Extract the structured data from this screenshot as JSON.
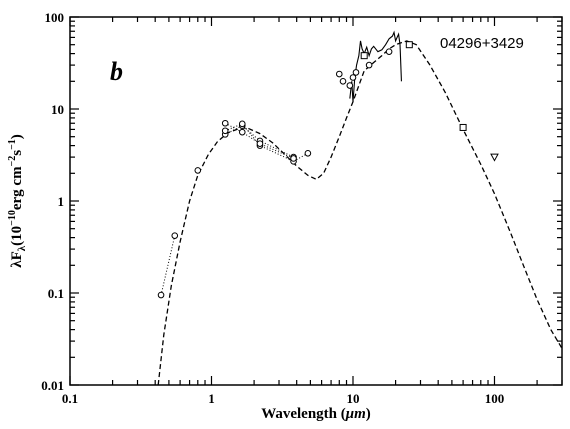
{
  "chart_data": {
    "type": "scatter",
    "panel_label": "b",
    "annotation": "04296+3429",
    "xlabel_main": "Wavelength (",
    "xlabel_unit": "μm",
    "xlabel_close": ")",
    "ylabel_lambda": "λF",
    "ylabel_sub": "λ",
    "ylabel_units_a": "(10",
    "ylabel_units_exp1": "−10",
    "ylabel_units_b": "erg cm",
    "ylabel_units_exp2": "−2",
    "ylabel_units_c": "s",
    "ylabel_units_exp3": "−1",
    "ylabel_units_d": ")",
    "xscale": "log",
    "yscale": "log",
    "xlim": [
      0.1,
      300
    ],
    "ylim": [
      0.01,
      100
    ],
    "x_ticks": [
      {
        "value": 0.1,
        "label": "0.1"
      },
      {
        "value": 1,
        "label": "1"
      },
      {
        "value": 10,
        "label": "10"
      },
      {
        "value": 100,
        "label": "100"
      }
    ],
    "y_ticks": [
      {
        "value": 0.01,
        "label": "0.01"
      },
      {
        "value": 0.1,
        "label": "0.1"
      },
      {
        "value": 1,
        "label": "1"
      },
      {
        "value": 10,
        "label": "10"
      },
      {
        "value": 100,
        "label": "100"
      }
    ],
    "series": [
      {
        "style": "dashed-line",
        "points": [
          [
            0.42,
            0.01
          ],
          [
            0.46,
            0.035
          ],
          [
            0.52,
            0.12
          ],
          [
            0.6,
            0.36
          ],
          [
            0.7,
            1.0
          ],
          [
            0.8,
            1.9
          ],
          [
            0.95,
            3.2
          ],
          [
            1.1,
            4.4
          ],
          [
            1.3,
            5.5
          ],
          [
            1.6,
            6.2
          ],
          [
            1.8,
            6.2
          ],
          [
            2.2,
            5.4
          ],
          [
            2.7,
            4.3
          ],
          [
            3.3,
            3.2
          ],
          [
            4.0,
            2.4
          ],
          [
            4.8,
            1.9
          ],
          [
            5.5,
            1.72
          ],
          [
            6.2,
            2.0
          ],
          [
            7.0,
            3.0
          ],
          [
            8.0,
            5.0
          ],
          [
            9.0,
            8.0
          ],
          [
            10.0,
            12.0
          ],
          [
            11.0,
            18.0
          ],
          [
            12.0,
            26.0
          ],
          [
            14.0,
            32.0
          ],
          [
            16.0,
            38.0
          ],
          [
            18.0,
            45.0
          ],
          [
            20.0,
            50.0
          ],
          [
            24.0,
            55.0
          ],
          [
            28.0,
            50.0
          ],
          [
            35.0,
            30.0
          ],
          [
            45.0,
            15.0
          ],
          [
            60.0,
            6.0
          ],
          [
            80.0,
            2.5
          ],
          [
            100.0,
            1.2
          ],
          [
            130.0,
            0.45
          ],
          [
            160.0,
            0.2
          ],
          [
            200.0,
            0.085
          ],
          [
            250.0,
            0.04
          ],
          [
            300.0,
            0.025
          ]
        ]
      },
      {
        "style": "solid-line",
        "points": [
          [
            9.5,
            13.0
          ],
          [
            9.8,
            20.0
          ],
          [
            10.0,
            12.0
          ],
          [
            10.3,
            22.0
          ],
          [
            10.6,
            30.0
          ],
          [
            11.0,
            38.0
          ],
          [
            11.3,
            55.0
          ],
          [
            11.6,
            45.0
          ],
          [
            12.0,
            40.0
          ],
          [
            12.5,
            47.0
          ],
          [
            13.0,
            38.0
          ],
          [
            13.5,
            45.0
          ],
          [
            14.0,
            48.0
          ],
          [
            15.0,
            42.0
          ],
          [
            16.0,
            44.0
          ],
          [
            17.0,
            50.0
          ],
          [
            18.0,
            58.0
          ],
          [
            19.0,
            62.0
          ],
          [
            19.5,
            68.0
          ],
          [
            20.0,
            55.0
          ],
          [
            20.5,
            60.0
          ],
          [
            21.0,
            65.0
          ],
          [
            21.5,
            50.0
          ],
          [
            22.0,
            20.0
          ]
        ]
      },
      {
        "style": "dotted-markers",
        "marker": "circle",
        "points": [
          [
            0.44,
            0.095
          ],
          [
            0.55,
            0.42
          ]
        ]
      },
      {
        "style": "dotted-markers",
        "marker": "circle",
        "points": [
          [
            1.25,
            5.3
          ],
          [
            1.65,
            6.6
          ],
          [
            2.2,
            4.5
          ],
          [
            3.8,
            3.0
          ]
        ]
      },
      {
        "style": "dotted-markers",
        "marker": "circle",
        "points": [
          [
            1.25,
            5.8
          ],
          [
            1.65,
            6.9
          ],
          [
            2.2,
            4.0
          ],
          [
            3.8,
            2.7
          ],
          [
            4.8,
            3.3
          ]
        ]
      },
      {
        "style": "dotted-markers",
        "marker": "circle",
        "points": [
          [
            1.25,
            7.0
          ],
          [
            1.65,
            5.6
          ],
          [
            2.2,
            4.2
          ],
          [
            3.8,
            2.9
          ]
        ]
      },
      {
        "style": "markers",
        "marker": "circle",
        "points": [
          [
            0.8,
            2.15
          ],
          [
            8.0,
            24.0
          ],
          [
            8.5,
            20.0
          ],
          [
            9.5,
            18.0
          ],
          [
            10.0,
            22.0
          ],
          [
            10.5,
            25.0
          ],
          [
            12.0,
            38.0
          ],
          [
            13.0,
            30.0
          ],
          [
            18.0,
            42.0
          ]
        ]
      },
      {
        "style": "markers",
        "marker": "square",
        "points": [
          [
            12.0,
            38.0
          ],
          [
            25.0,
            50.0
          ],
          [
            60.0,
            6.3
          ]
        ]
      },
      {
        "style": "markers",
        "marker": "triangle-down",
        "points": [
          [
            100.0,
            3.0
          ]
        ]
      }
    ]
  }
}
